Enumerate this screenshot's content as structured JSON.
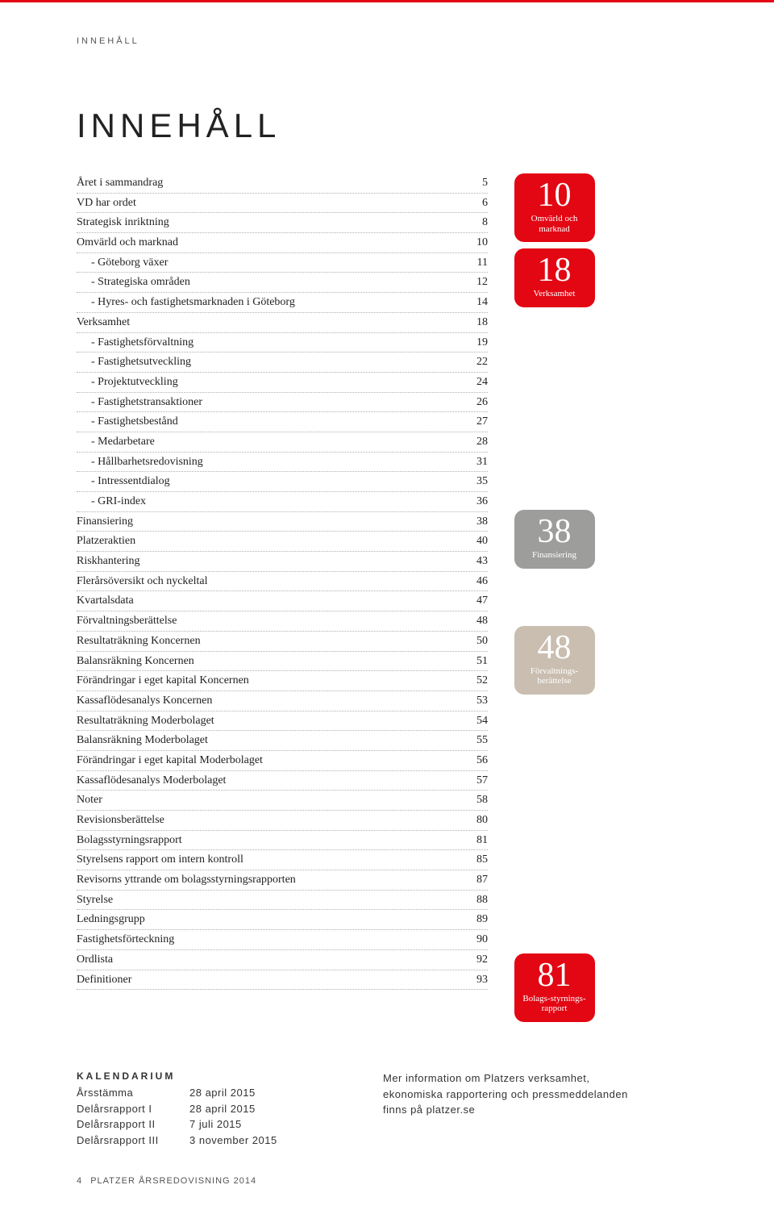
{
  "header_label": "INNEHÅLL",
  "main_title": "INNEHÅLL",
  "toc": [
    {
      "label": "Året i sammandrag",
      "page": "5",
      "indent": false
    },
    {
      "label": "VD har ordet",
      "page": "6",
      "indent": false
    },
    {
      "label": "Strategisk inriktning",
      "page": "8",
      "indent": false
    },
    {
      "label": "Omvärld och marknad",
      "page": "10",
      "indent": false
    },
    {
      "label": "- Göteborg växer",
      "page": "11",
      "indent": true
    },
    {
      "label": "- Strategiska områden",
      "page": "12",
      "indent": true
    },
    {
      "label": "- Hyres- och fastighetsmarknaden i Göteborg",
      "page": "14",
      "indent": true
    },
    {
      "label": "Verksamhet",
      "page": "18",
      "indent": false
    },
    {
      "label": "- Fastighetsförvaltning",
      "page": "19",
      "indent": true
    },
    {
      "label": "- Fastighetsutveckling",
      "page": "22",
      "indent": true
    },
    {
      "label": "- Projektutveckling",
      "page": "24",
      "indent": true
    },
    {
      "label": "- Fastighetstransaktioner",
      "page": "26",
      "indent": true
    },
    {
      "label": "- Fastighetsbestånd",
      "page": "27",
      "indent": true
    },
    {
      "label": "- Medarbetare",
      "page": "28",
      "indent": true
    },
    {
      "label": "- Hållbarhetsredovisning",
      "page": "31",
      "indent": true
    },
    {
      "label": "- Intressentdialog",
      "page": "35",
      "indent": true
    },
    {
      "label": "- GRI-index",
      "page": "36",
      "indent": true
    },
    {
      "label": "Finansiering",
      "page": "38",
      "indent": false
    },
    {
      "label": "Platzeraktien",
      "page": "40",
      "indent": false
    },
    {
      "label": "Riskhantering",
      "page": "43",
      "indent": false
    },
    {
      "label": "Flerårsöversikt och nyckeltal",
      "page": "46",
      "indent": false
    },
    {
      "label": "Kvartalsdata",
      "page": "47",
      "indent": false
    },
    {
      "label": "Förvaltningsberättelse",
      "page": "48",
      "indent": false
    },
    {
      "label": "Resultaträkning Koncernen",
      "page": "50",
      "indent": false
    },
    {
      "label": "Balansräkning Koncernen",
      "page": "51",
      "indent": false
    },
    {
      "label": "Förändringar i eget kapital Koncernen",
      "page": "52",
      "indent": false
    },
    {
      "label": "Kassaflödesanalys Koncernen",
      "page": "53",
      "indent": false
    },
    {
      "label": "Resultaträkning Moderbolaget",
      "page": "54",
      "indent": false
    },
    {
      "label": "Balansräkning Moderbolaget",
      "page": "55",
      "indent": false
    },
    {
      "label": "Förändringar i eget kapital Moderbolaget",
      "page": "56",
      "indent": false
    },
    {
      "label": "Kassaflödesanalys Moderbolaget",
      "page": "57",
      "indent": false
    },
    {
      "label": "Noter",
      "page": "58",
      "indent": false
    },
    {
      "label": "Revisionsberättelse",
      "page": "80",
      "indent": false
    },
    {
      "label": "Bolagsstyrningsrapport",
      "page": "81",
      "indent": false
    },
    {
      "label": "Styrelsens rapport om intern kontroll",
      "page": "85",
      "indent": false
    },
    {
      "label": "Revisorns yttrande om bolagsstyrningsrapporten",
      "page": "87",
      "indent": false
    },
    {
      "label": "Styrelse",
      "page": "88",
      "indent": false
    },
    {
      "label": "Ledningsgrupp",
      "page": "89",
      "indent": false
    },
    {
      "label": "Fastighetsförteckning",
      "page": "90",
      "indent": false
    },
    {
      "label": "Ordlista",
      "page": "92",
      "indent": false
    },
    {
      "label": "Definitioner",
      "page": "93",
      "indent": false
    }
  ],
  "badges": [
    {
      "num": "10",
      "label": "Omvärld och marknad",
      "bg": "#e30613",
      "fg": "#ffffff"
    },
    {
      "num": "18",
      "label": "Verksamhet",
      "bg": "#e30613",
      "fg": "#ffffff"
    },
    {
      "num": "38",
      "label": "Finansiering",
      "bg": "#9d9d9c",
      "fg": "#ffffff"
    },
    {
      "num": "48",
      "label": "Förvaltnings-berättelse",
      "bg": "#c9beb0",
      "fg": "#ffffff"
    },
    {
      "num": "81",
      "label": "Bolags-styrnings-rapport",
      "bg": "#e30613",
      "fg": "#ffffff"
    }
  ],
  "kalendarium": {
    "title": "KALENDARIUM",
    "events": [
      {
        "name": "Årsstämma",
        "date": "28 april 2015"
      },
      {
        "name": "Delårsrapport I",
        "date": "28 april 2015"
      },
      {
        "name": "Delårsrapport II",
        "date": "7 juli 2015"
      },
      {
        "name": "Delårsrapport III",
        "date": "3 november 2015"
      }
    ],
    "info_lines": [
      "Mer information om Platzers verksamhet,",
      "ekonomiska rapportering och pressmeddelanden",
      "finns på platzer.se"
    ]
  },
  "footer": {
    "page_num": "4",
    "text": "PLATZER ÅRSREDOVISNING 2014"
  },
  "colors": {
    "red": "#e30613",
    "gray": "#9d9d9c",
    "beige": "#c9beb0",
    "text": "#222222",
    "dotted": "#b0b0b0"
  }
}
